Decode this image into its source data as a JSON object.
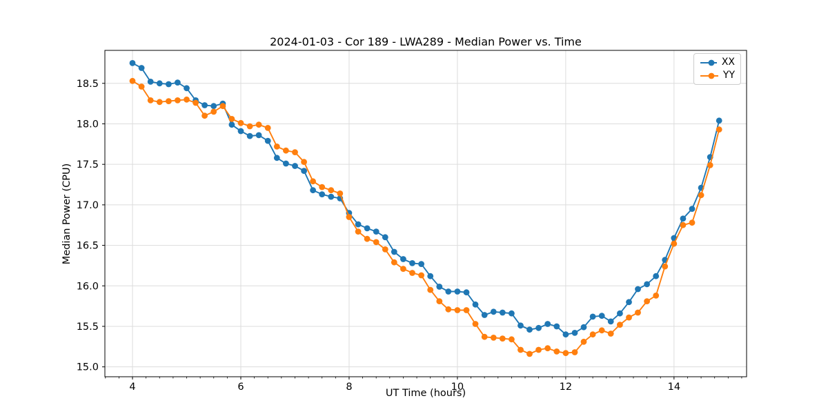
{
  "chart_data": {
    "type": "line",
    "title": "2024-01-03 - Cor 189 - LWA289 - Median Power vs. Time",
    "xlabel": "UT Time (hours)",
    "ylabel": "Median Power (CPU)",
    "xlim": [
      3.49,
      15.34
    ],
    "ylim": [
      14.878,
      18.907
    ],
    "xticks": [
      4,
      6,
      8,
      10,
      12,
      14
    ],
    "xtick_labels": [
      "4",
      "6",
      "8",
      "10",
      "12",
      "14"
    ],
    "x_minor_tick_step": 0.25,
    "yticks": [
      15.0,
      15.5,
      16.0,
      16.5,
      17.0,
      17.5,
      18.0,
      18.5
    ],
    "ytick_labels": [
      "15.0",
      "15.5",
      "16.0",
      "16.5",
      "17.0",
      "17.5",
      "18.0",
      "18.5"
    ],
    "grid": true,
    "grid_color": "#dcdcdc",
    "legend_position": "upper right",
    "x": [
      4.0,
      4.167,
      4.333,
      4.5,
      4.667,
      4.833,
      5.0,
      5.167,
      5.333,
      5.5,
      5.667,
      5.833,
      6.0,
      6.167,
      6.333,
      6.5,
      6.667,
      6.833,
      7.0,
      7.167,
      7.333,
      7.5,
      7.667,
      7.833,
      8.0,
      8.167,
      8.333,
      8.5,
      8.667,
      8.833,
      9.0,
      9.167,
      9.333,
      9.5,
      9.667,
      9.833,
      10.0,
      10.167,
      10.333,
      10.5,
      10.667,
      10.833,
      11.0,
      11.167,
      11.333,
      11.5,
      11.667,
      11.833,
      12.0,
      12.167,
      12.333,
      12.5,
      12.667,
      12.833,
      13.0,
      13.167,
      13.333,
      13.5,
      13.667,
      13.833,
      14.0,
      14.167,
      14.333,
      14.5,
      14.667,
      14.833
    ],
    "series": [
      {
        "name": "XX",
        "color": "#1f77b4",
        "values": [
          18.75,
          18.69,
          18.52,
          18.5,
          18.49,
          18.51,
          18.44,
          18.29,
          18.23,
          18.22,
          18.25,
          17.99,
          17.91,
          17.85,
          17.86,
          17.79,
          17.58,
          17.51,
          17.48,
          17.42,
          17.18,
          17.13,
          17.1,
          17.08,
          16.9,
          16.76,
          16.71,
          16.67,
          16.6,
          16.42,
          16.33,
          16.28,
          16.27,
          16.12,
          15.99,
          15.93,
          15.93,
          15.92,
          15.77,
          15.64,
          15.68,
          15.67,
          15.66,
          15.51,
          15.46,
          15.48,
          15.53,
          15.5,
          15.4,
          15.42,
          15.49,
          15.62,
          15.63,
          15.56,
          15.66,
          15.8,
          15.96,
          16.02,
          16.12,
          16.32,
          16.59,
          16.83,
          16.95,
          17.21,
          17.59,
          18.04
        ]
      },
      {
        "name": "YY",
        "color": "#ff7f0e",
        "values": [
          18.53,
          18.46,
          18.29,
          18.27,
          18.28,
          18.29,
          18.3,
          18.26,
          18.1,
          18.15,
          18.22,
          18.06,
          18.01,
          17.97,
          17.99,
          17.95,
          17.72,
          17.67,
          17.65,
          17.53,
          17.29,
          17.22,
          17.18,
          17.14,
          16.85,
          16.67,
          16.58,
          16.54,
          16.45,
          16.29,
          16.21,
          16.16,
          16.13,
          15.95,
          15.81,
          15.71,
          15.7,
          15.7,
          15.53,
          15.37,
          15.36,
          15.35,
          15.34,
          15.21,
          15.16,
          15.21,
          15.23,
          15.19,
          15.17,
          15.18,
          15.31,
          15.4,
          15.45,
          15.41,
          15.52,
          15.61,
          15.67,
          15.81,
          15.88,
          16.24,
          16.52,
          16.75,
          16.78,
          17.12,
          17.49,
          17.93
        ]
      }
    ]
  },
  "legend": {
    "items": [
      {
        "label": "XX"
      },
      {
        "label": "YY"
      }
    ]
  }
}
